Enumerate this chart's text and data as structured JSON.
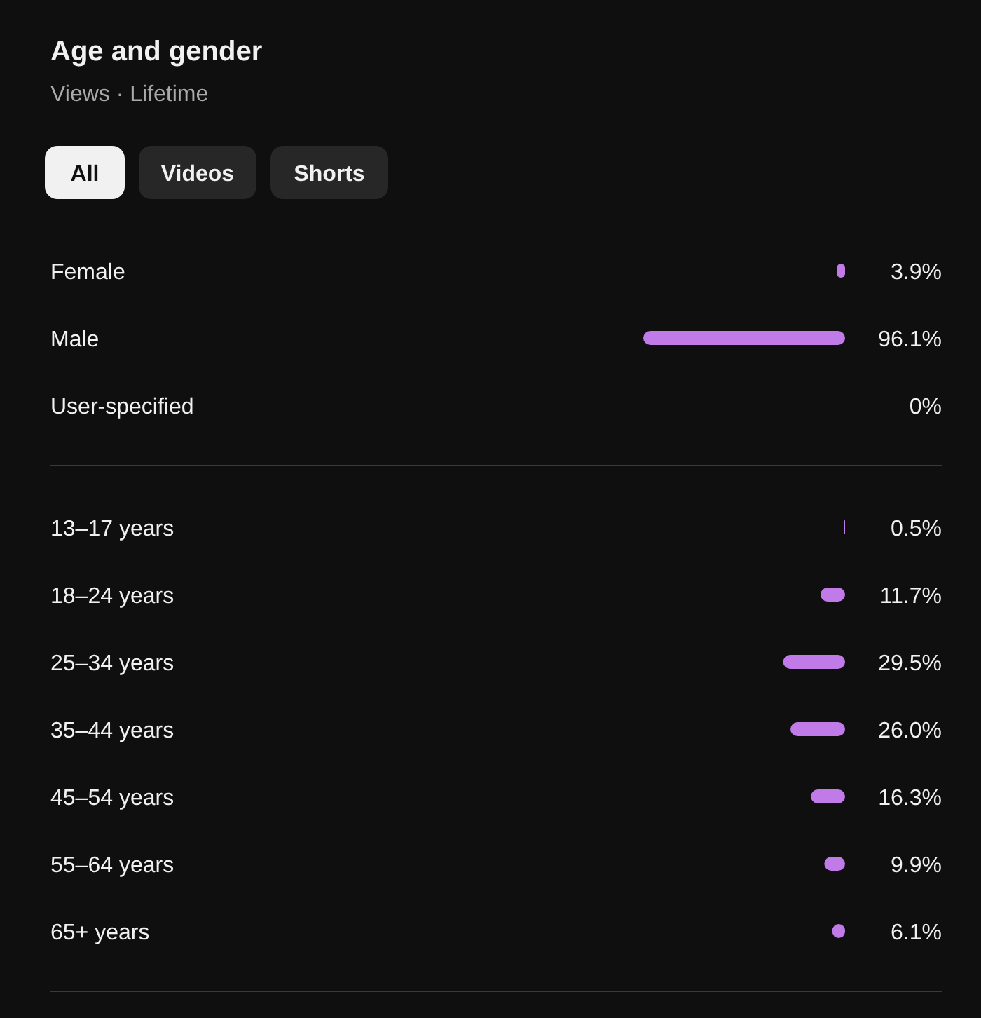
{
  "chart_data": [
    {
      "type": "bar",
      "orientation": "horizontal",
      "title": "Age and gender",
      "subtitle": "Views · Lifetime",
      "annotations": [
        "All",
        "Videos",
        "Shorts"
      ],
      "categories": [
        "Female",
        "Male",
        "User-specified"
      ],
      "values": [
        3.9,
        96.1,
        0
      ],
      "value_labels": [
        "3.9%",
        "96.1%",
        "0%"
      ],
      "color": "#c17be8",
      "tick_labels": "y"
    },
    {
      "type": "bar",
      "orientation": "horizontal",
      "categories": [
        "13–17 years",
        "18–24 years",
        "25–34 years",
        "35–44 years",
        "45–54 years",
        "55–64 years",
        "65+ years"
      ],
      "values": [
        0.5,
        11.7,
        29.5,
        26.0,
        16.3,
        9.9,
        6.1
      ],
      "value_labels": [
        "0.5%",
        "11.7%",
        "29.5%",
        "26.0%",
        "16.3%",
        "9.9%",
        "6.1%"
      ],
      "color": "#c17be8",
      "tick_labels": "y"
    }
  ]
}
